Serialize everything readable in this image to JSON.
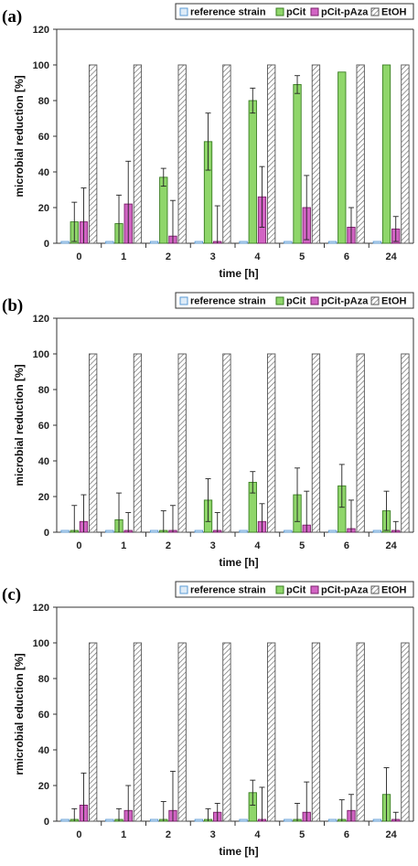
{
  "chart_data": [
    {
      "type": "bar",
      "panel_label": "(a)",
      "xlabel": "time [h]",
      "ylabel": "microbial reduction [%]",
      "ylim": [
        0,
        120
      ],
      "yticks": [
        0,
        20,
        40,
        60,
        80,
        100,
        120
      ],
      "categories": [
        "0",
        "1",
        "2",
        "3",
        "4",
        "5",
        "6",
        "24"
      ],
      "legend_position": "top-right",
      "grid": false,
      "series": [
        {
          "name": "reference strain",
          "color": "#5b9bd5",
          "fill": "#ddebf7",
          "pattern": "solid",
          "values": [
            1,
            1,
            1,
            1,
            1,
            1,
            1,
            1
          ],
          "errors": [
            0,
            0,
            0,
            0,
            0,
            0,
            0,
            0
          ]
        },
        {
          "name": "pCit",
          "color": "#3a7d22",
          "fill": "#8fd66a",
          "pattern": "solid",
          "values": [
            12,
            11,
            37,
            57,
            80,
            89,
            96,
            100
          ],
          "errors": [
            11,
            16,
            5,
            16,
            7,
            5,
            0,
            0
          ]
        },
        {
          "name": "pCit-pAza",
          "color": "#7a1f6a",
          "fill": "#d264c4",
          "pattern": "solid",
          "values": [
            12,
            22,
            4,
            1,
            26,
            20,
            9,
            8
          ],
          "errors": [
            19,
            24,
            20,
            20,
            17,
            18,
            11,
            7
          ]
        },
        {
          "name": "EtOH",
          "color": "#555555",
          "fill": "#ffffff",
          "pattern": "hatch",
          "values": [
            100,
            100,
            100,
            100,
            100,
            100,
            100,
            100
          ],
          "errors": [
            0,
            0,
            0,
            0,
            0,
            0,
            0,
            0
          ]
        }
      ]
    },
    {
      "type": "bar",
      "panel_label": "(b)",
      "xlabel": "time [h]",
      "ylabel": "microbial reduction [%]",
      "ylim": [
        0,
        120
      ],
      "yticks": [
        0,
        20,
        40,
        60,
        80,
        100,
        120
      ],
      "categories": [
        "0",
        "1",
        "2",
        "3",
        "4",
        "5",
        "6",
        "24"
      ],
      "legend_position": "top-right",
      "grid": false,
      "series": [
        {
          "name": "reference strain",
          "color": "#5b9bd5",
          "fill": "#ddebf7",
          "pattern": "solid",
          "values": [
            1,
            1,
            1,
            1,
            1,
            1,
            1,
            1
          ],
          "errors": [
            0,
            0,
            0,
            0,
            0,
            0,
            0,
            0
          ]
        },
        {
          "name": "pCit",
          "color": "#3a7d22",
          "fill": "#8fd66a",
          "pattern": "solid",
          "values": [
            1,
            7,
            1,
            18,
            28,
            21,
            26,
            12
          ],
          "errors": [
            14,
            15,
            11,
            12,
            6,
            15,
            12,
            11
          ]
        },
        {
          "name": "pCit-pAza",
          "color": "#7a1f6a",
          "fill": "#d264c4",
          "pattern": "solid",
          "values": [
            6,
            1,
            1,
            1,
            6,
            4,
            2,
            1
          ],
          "errors": [
            15,
            10,
            14,
            10,
            10,
            19,
            16,
            5
          ]
        },
        {
          "name": "EtOH",
          "color": "#555555",
          "fill": "#ffffff",
          "pattern": "hatch",
          "values": [
            100,
            100,
            100,
            100,
            100,
            100,
            100,
            100
          ],
          "errors": [
            0,
            0,
            0,
            0,
            0,
            0,
            0,
            0
          ]
        }
      ]
    },
    {
      "type": "bar",
      "panel_label": "(c)",
      "xlabel": "time [h]",
      "ylabel": "rmicrobial eduction [%]",
      "ylim": [
        0,
        120
      ],
      "yticks": [
        0,
        20,
        40,
        60,
        80,
        100,
        120
      ],
      "categories": [
        "0",
        "1",
        "2",
        "3",
        "4",
        "5",
        "6",
        "24"
      ],
      "legend_position": "top-right",
      "grid": false,
      "series": [
        {
          "name": "reference strain",
          "color": "#5b9bd5",
          "fill": "#ddebf7",
          "pattern": "solid",
          "values": [
            1,
            1,
            1,
            1,
            1,
            1,
            1,
            1
          ],
          "errors": [
            0,
            0,
            0,
            0,
            0,
            0,
            0,
            0
          ]
        },
        {
          "name": "pCit",
          "color": "#3a7d22",
          "fill": "#8fd66a",
          "pattern": "solid",
          "values": [
            1,
            1,
            1,
            1,
            16,
            1,
            1,
            15
          ],
          "errors": [
            6,
            6,
            10,
            6,
            7,
            9,
            11,
            15
          ]
        },
        {
          "name": "pCit-pAza",
          "color": "#7a1f6a",
          "fill": "#d264c4",
          "pattern": "solid",
          "values": [
            9,
            6,
            6,
            5,
            1,
            5,
            6,
            1
          ],
          "errors": [
            18,
            14,
            22,
            5,
            18,
            17,
            9,
            4
          ]
        },
        {
          "name": "EtOH",
          "color": "#555555",
          "fill": "#ffffff",
          "pattern": "hatch",
          "values": [
            100,
            100,
            100,
            100,
            100,
            100,
            100,
            100
          ],
          "errors": [
            0,
            0,
            0,
            0,
            0,
            0,
            0,
            0
          ]
        }
      ]
    }
  ]
}
